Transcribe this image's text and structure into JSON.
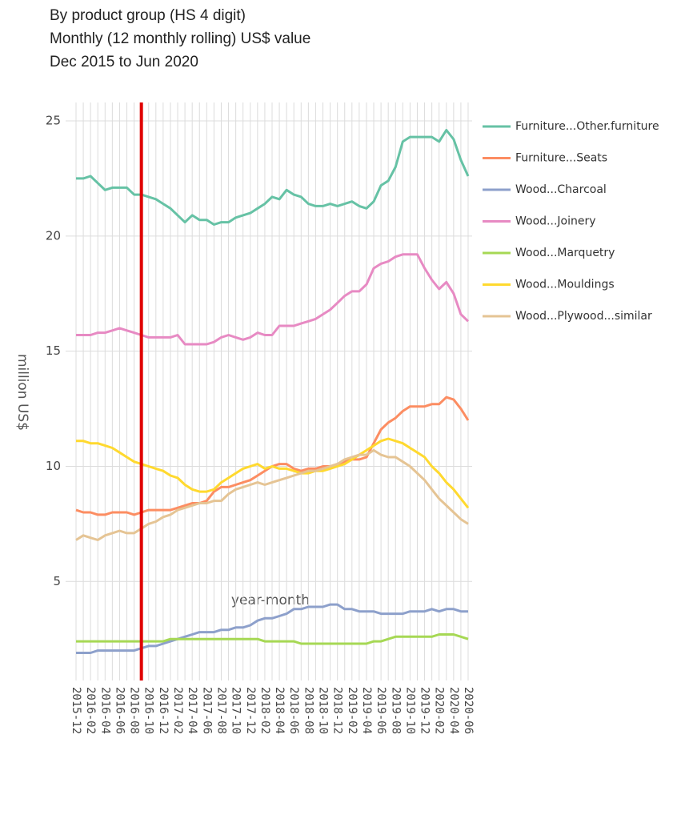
{
  "chart_data": {
    "type": "line",
    "title_lines": [
      "By product group (HS 4 digit)",
      "Monthly (12 monthly rolling) US$ value",
      "Dec 2015 to Jun 2020"
    ],
    "ylabel": "million US$",
    "xlabel": "year-month",
    "categories": [
      "2015-12",
      null,
      "2016-02",
      null,
      "2016-04",
      null,
      "2016-06",
      null,
      "2016-08",
      null,
      "2016-10",
      null,
      "2016-12",
      null,
      "2017-02",
      null,
      "2017-04",
      null,
      "2017-06",
      null,
      "2017-08",
      null,
      "2017-10",
      null,
      "2017-12",
      null,
      "2018-02",
      null,
      "2018-04",
      null,
      "2018-06",
      null,
      "2018-08",
      null,
      "2018-10",
      null,
      "2018-12",
      null,
      "2019-02",
      null,
      "2019-04",
      null,
      "2019-06",
      null,
      "2019-08",
      null,
      "2019-10",
      null,
      "2019-12",
      null,
      "2020-02",
      null,
      "2020-04",
      null,
      "2020-06"
    ],
    "ylim": [
      0.7,
      25.8
    ],
    "yticks": [
      5,
      10,
      15,
      20,
      25
    ],
    "grid": true,
    "reference_line": {
      "category_index": 9,
      "color": "#e00000"
    },
    "series": [
      {
        "name": "Furniture...Other.furniture",
        "color": "#66c2a5",
        "values": [
          22.5,
          22.5,
          22.6,
          22.3,
          22.0,
          22.1,
          22.1,
          22.1,
          21.8,
          21.8,
          21.7,
          21.6,
          21.4,
          21.2,
          20.9,
          20.6,
          20.9,
          20.7,
          20.7,
          20.5,
          20.6,
          20.6,
          20.8,
          20.9,
          21.0,
          21.2,
          21.4,
          21.7,
          21.6,
          22.0,
          21.8,
          21.7,
          21.4,
          21.3,
          21.3,
          21.4,
          21.3,
          21.4,
          21.5,
          21.3,
          21.2,
          21.5,
          22.2,
          22.4,
          23.0,
          24.1,
          24.3,
          24.3,
          24.3,
          24.3,
          24.1,
          24.6,
          24.2,
          23.3,
          22.6
        ]
      },
      {
        "name": "Furniture...Seats",
        "color": "#fc8d62",
        "values": [
          8.1,
          8.0,
          8.0,
          7.9,
          7.9,
          8.0,
          8.0,
          8.0,
          7.9,
          8.0,
          8.1,
          8.1,
          8.1,
          8.1,
          8.2,
          8.3,
          8.4,
          8.4,
          8.5,
          8.9,
          9.1,
          9.1,
          9.2,
          9.3,
          9.4,
          9.6,
          9.8,
          10.0,
          10.1,
          10.1,
          9.9,
          9.8,
          9.9,
          9.9,
          10.0,
          10.0,
          10.1,
          10.2,
          10.3,
          10.3,
          10.4,
          11.0,
          11.6,
          11.9,
          12.1,
          12.4,
          12.6,
          12.6,
          12.6,
          12.7,
          12.7,
          13.0,
          12.9,
          12.5,
          12.0
        ]
      },
      {
        "name": "Wood...Charcoal",
        "color": "#8da0cb",
        "values": [
          1.9,
          1.9,
          1.9,
          2.0,
          2.0,
          2.0,
          2.0,
          2.0,
          2.0,
          2.1,
          2.2,
          2.2,
          2.3,
          2.4,
          2.5,
          2.6,
          2.7,
          2.8,
          2.8,
          2.8,
          2.9,
          2.9,
          3.0,
          3.0,
          3.1,
          3.3,
          3.4,
          3.4,
          3.5,
          3.6,
          3.8,
          3.8,
          3.9,
          3.9,
          3.9,
          4.0,
          4.0,
          3.8,
          3.8,
          3.7,
          3.7,
          3.7,
          3.6,
          3.6,
          3.6,
          3.6,
          3.7,
          3.7,
          3.7,
          3.8,
          3.7,
          3.8,
          3.8,
          3.7,
          3.7
        ]
      },
      {
        "name": "Wood...Joinery",
        "color": "#e78ac3",
        "values": [
          15.7,
          15.7,
          15.7,
          15.8,
          15.8,
          15.9,
          16.0,
          15.9,
          15.8,
          15.7,
          15.6,
          15.6,
          15.6,
          15.6,
          15.7,
          15.3,
          15.3,
          15.3,
          15.3,
          15.4,
          15.6,
          15.7,
          15.6,
          15.5,
          15.6,
          15.8,
          15.7,
          15.7,
          16.1,
          16.1,
          16.1,
          16.2,
          16.3,
          16.4,
          16.6,
          16.8,
          17.1,
          17.4,
          17.6,
          17.6,
          17.9,
          18.6,
          18.8,
          18.9,
          19.1,
          19.2,
          19.2,
          19.2,
          18.6,
          18.1,
          17.7,
          18.0,
          17.5,
          16.6,
          16.3
        ]
      },
      {
        "name": "Wood...Marquetry",
        "color": "#a6d854",
        "values": [
          2.4,
          2.4,
          2.4,
          2.4,
          2.4,
          2.4,
          2.4,
          2.4,
          2.4,
          2.4,
          2.4,
          2.4,
          2.4,
          2.5,
          2.5,
          2.5,
          2.5,
          2.5,
          2.5,
          2.5,
          2.5,
          2.5,
          2.5,
          2.5,
          2.5,
          2.5,
          2.4,
          2.4,
          2.4,
          2.4,
          2.4,
          2.3,
          2.3,
          2.3,
          2.3,
          2.3,
          2.3,
          2.3,
          2.3,
          2.3,
          2.3,
          2.4,
          2.4,
          2.5,
          2.6,
          2.6,
          2.6,
          2.6,
          2.6,
          2.6,
          2.7,
          2.7,
          2.7,
          2.6,
          2.5
        ]
      },
      {
        "name": "Wood...Mouldings",
        "color": "#ffd92f",
        "values": [
          11.1,
          11.1,
          11.0,
          11.0,
          10.9,
          10.8,
          10.6,
          10.4,
          10.2,
          10.1,
          10.0,
          9.9,
          9.8,
          9.6,
          9.5,
          9.2,
          9.0,
          8.9,
          8.9,
          9.0,
          9.3,
          9.5,
          9.7,
          9.9,
          10.0,
          10.1,
          9.9,
          10.0,
          9.9,
          9.9,
          9.8,
          9.7,
          9.7,
          9.8,
          9.8,
          9.9,
          10.0,
          10.1,
          10.3,
          10.5,
          10.7,
          10.9,
          11.1,
          11.2,
          11.1,
          11.0,
          10.8,
          10.6,
          10.4,
          10.0,
          9.7,
          9.3,
          9.0,
          8.6,
          8.2
        ]
      },
      {
        "name": "Wood...Plywood...similar",
        "color": "#e5c494",
        "values": [
          6.8,
          7.0,
          6.9,
          6.8,
          7.0,
          7.1,
          7.2,
          7.1,
          7.1,
          7.3,
          7.5,
          7.6,
          7.8,
          7.9,
          8.1,
          8.2,
          8.3,
          8.4,
          8.4,
          8.5,
          8.5,
          8.8,
          9.0,
          9.1,
          9.2,
          9.3,
          9.2,
          9.3,
          9.4,
          9.5,
          9.6,
          9.7,
          9.8,
          9.8,
          9.9,
          10.0,
          10.1,
          10.3,
          10.4,
          10.5,
          10.5,
          10.7,
          10.5,
          10.4,
          10.4,
          10.2,
          10.0,
          9.7,
          9.4,
          9.0,
          8.6,
          8.3,
          8.0,
          7.7,
          7.5
        ]
      }
    ]
  }
}
